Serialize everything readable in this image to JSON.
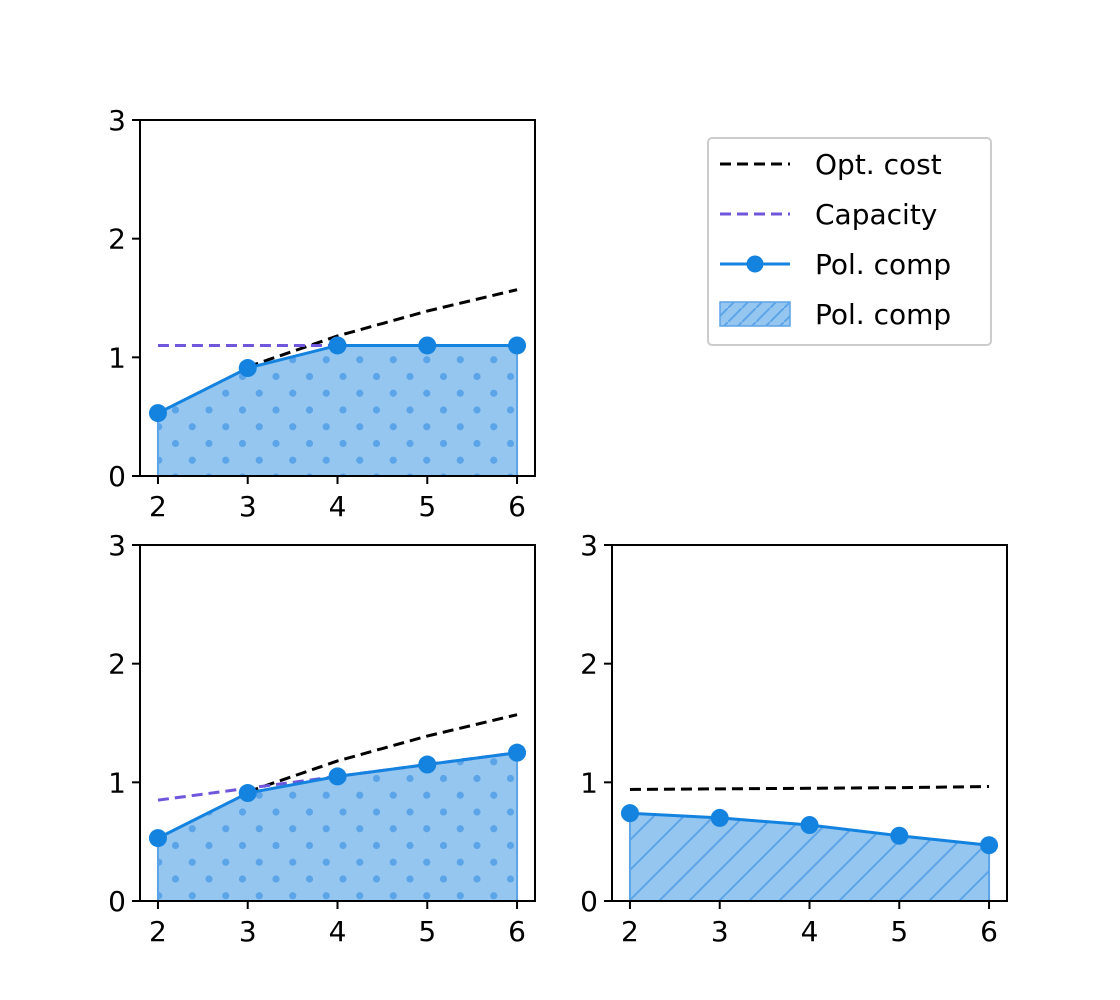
{
  "colors": {
    "opt_cost": "#000000",
    "capacity": "#7056DB",
    "pol_comp": "#1483E0",
    "fill": "#94C6F0",
    "pattern": "#5CA4E8"
  },
  "legend": {
    "placement": "top-right",
    "entries": [
      {
        "key": "opt_cost",
        "label": "Opt. cost",
        "style": "dashed-line"
      },
      {
        "key": "capacity",
        "label": "Capacity",
        "style": "dashed-line"
      },
      {
        "key": "pol_comp_line",
        "label": "Pol. comp",
        "style": "line-marker"
      },
      {
        "key": "pol_comp_area",
        "label": "Pol. comp",
        "style": "hatched-patch"
      }
    ]
  },
  "chart_data": [
    {
      "type": "line",
      "panel": "top-left",
      "x": [
        2,
        3,
        4,
        5,
        6
      ],
      "xlim": [
        1.8,
        6.2
      ],
      "ylim": [
        0,
        3
      ],
      "xticks": [
        "2",
        "3",
        "4",
        "5",
        "6"
      ],
      "yticks": [
        "0",
        "1",
        "2",
        "3"
      ],
      "grid": false,
      "fill_pattern": "dots",
      "series": [
        {
          "key": "opt_cost",
          "style": "dashed",
          "x": [
            3,
            4,
            5,
            6
          ],
          "values": [
            0.92,
            1.18,
            1.39,
            1.57
          ]
        },
        {
          "key": "capacity",
          "style": "dashed",
          "x": [
            2,
            3,
            4,
            5,
            6
          ],
          "values": [
            1.1,
            1.1,
            1.1,
            1.1,
            1.1
          ]
        },
        {
          "key": "pol_comp",
          "style": "line-marker-area",
          "x": [
            2,
            3,
            4,
            5,
            6
          ],
          "values": [
            0.53,
            0.91,
            1.1,
            1.1,
            1.1
          ]
        }
      ]
    },
    {
      "type": "line",
      "panel": "bottom-left",
      "x": [
        2,
        3,
        4,
        5,
        6
      ],
      "xlim": [
        1.8,
        6.2
      ],
      "ylim": [
        0,
        3
      ],
      "xticks": [
        "2",
        "3",
        "4",
        "5",
        "6"
      ],
      "yticks": [
        "0",
        "1",
        "2",
        "3"
      ],
      "grid": false,
      "fill_pattern": "dots",
      "series": [
        {
          "key": "opt_cost",
          "style": "dashed",
          "x": [
            3,
            4,
            5,
            6
          ],
          "values": [
            0.92,
            1.18,
            1.39,
            1.57
          ]
        },
        {
          "key": "capacity",
          "style": "dashed",
          "x": [
            2,
            3,
            4,
            5,
            6
          ],
          "values": [
            0.85,
            0.95,
            1.05,
            1.15,
            1.25
          ]
        },
        {
          "key": "pol_comp",
          "style": "line-marker-area",
          "x": [
            2,
            3,
            4,
            5,
            6
          ],
          "values": [
            0.53,
            0.91,
            1.05,
            1.15,
            1.25
          ]
        }
      ]
    },
    {
      "type": "line",
      "panel": "bottom-right",
      "x": [
        2,
        3,
        4,
        5,
        6
      ],
      "xlim": [
        1.8,
        6.2
      ],
      "ylim": [
        0,
        3
      ],
      "xticks": [
        "2",
        "3",
        "4",
        "5",
        "6"
      ],
      "yticks": [
        "0",
        "1",
        "2",
        "3"
      ],
      "grid": false,
      "fill_pattern": "hatch",
      "series": [
        {
          "key": "opt_cost",
          "style": "dashed",
          "x": [
            2,
            3,
            4,
            5,
            6
          ],
          "values": [
            0.94,
            0.945,
            0.95,
            0.955,
            0.965
          ]
        },
        {
          "key": "pol_comp",
          "style": "line-marker-area",
          "x": [
            2,
            3,
            4,
            5,
            6
          ],
          "values": [
            0.74,
            0.7,
            0.64,
            0.55,
            0.47
          ]
        }
      ]
    }
  ]
}
